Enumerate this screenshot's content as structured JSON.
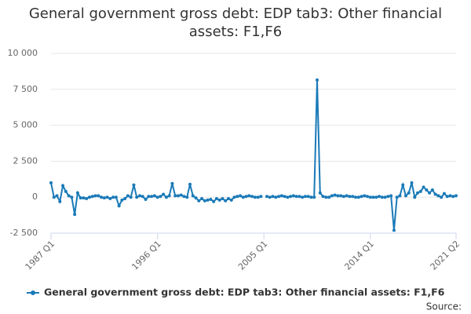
{
  "chart_data": {
    "type": "line",
    "title": "General government gross debt: EDP tab3: Other financial assets: F1,F6",
    "categories": [
      "1987 Q1",
      null,
      null,
      null,
      null,
      null,
      null,
      null,
      null,
      null,
      null,
      null,
      null,
      null,
      null,
      null,
      null,
      null,
      null,
      null,
      null,
      null,
      null,
      null,
      null,
      null,
      null,
      null,
      null,
      null,
      null,
      null,
      null,
      null,
      null,
      null,
      "1996 Q1",
      null,
      null,
      null,
      null,
      null,
      null,
      null,
      null,
      null,
      null,
      null,
      null,
      null,
      null,
      null,
      null,
      null,
      null,
      null,
      null,
      null,
      null,
      null,
      null,
      null,
      null,
      null,
      null,
      null,
      null,
      null,
      null,
      null,
      null,
      null,
      "2005 Q1",
      null,
      null,
      null,
      null,
      null,
      null,
      null,
      null,
      null,
      null,
      null,
      null,
      null,
      null,
      null,
      null,
      null,
      null,
      null,
      null,
      null,
      null,
      null,
      null,
      null,
      null,
      null,
      null,
      null,
      null,
      null,
      null,
      null,
      null,
      null,
      "2014 Q1",
      null,
      null,
      null,
      null,
      null,
      null,
      null,
      null,
      null,
      null,
      null,
      null,
      null,
      null,
      null,
      null,
      null,
      null,
      null,
      null,
      null,
      null,
      null,
      null,
      null,
      null,
      null,
      null,
      "2021 Q2"
    ],
    "series": [
      {
        "name": "General government gross debt: EDP tab3: Other financial assets: F1,F6",
        "color": "#1a7ab8",
        "values": [
          1000,
          0,
          100,
          -300,
          800,
          400,
          100,
          0,
          -1200,
          300,
          -50,
          -50,
          -100,
          0,
          50,
          100,
          100,
          0,
          -50,
          0,
          -100,
          0,
          0,
          -600,
          -200,
          -100,
          100,
          0,
          850,
          0,
          100,
          50,
          -150,
          50,
          50,
          100,
          0,
          50,
          200,
          0,
          100,
          950,
          100,
          100,
          150,
          50,
          0,
          900,
          100,
          -50,
          -250,
          -100,
          -250,
          -200,
          -150,
          -300,
          -100,
          -200,
          -100,
          -250,
          -100,
          -200,
          0,
          50,
          100,
          0,
          50,
          100,
          50,
          0,
          0,
          50,
          null,
          50,
          0,
          50,
          0,
          50,
          100,
          50,
          0,
          50,
          100,
          50,
          50,
          0,
          50,
          50,
          0,
          0,
          8150,
          300,
          50,
          0,
          0,
          100,
          150,
          100,
          100,
          50,
          100,
          50,
          50,
          0,
          0,
          50,
          100,
          50,
          0,
          0,
          0,
          50,
          0,
          0,
          50,
          100,
          -2300,
          0,
          100,
          850,
          100,
          300,
          1000,
          0,
          300,
          400,
          700,
          500,
          300,
          500,
          200,
          100,
          0,
          250,
          50,
          100,
          50,
          100
        ]
      }
    ],
    "ylim": [
      -2500,
      10000
    ],
    "yticks": [
      {
        "value": -2500,
        "label": "-2 500"
      },
      0,
      {
        "value": 2500,
        "label": "2 500"
      },
      {
        "value": 5000,
        "label": "5 000"
      },
      {
        "value": 7500,
        "label": "7 500"
      },
      {
        "value": 10000,
        "label": "10 000"
      }
    ],
    "grid": true,
    "legend": "bottom",
    "source": "Source:"
  }
}
